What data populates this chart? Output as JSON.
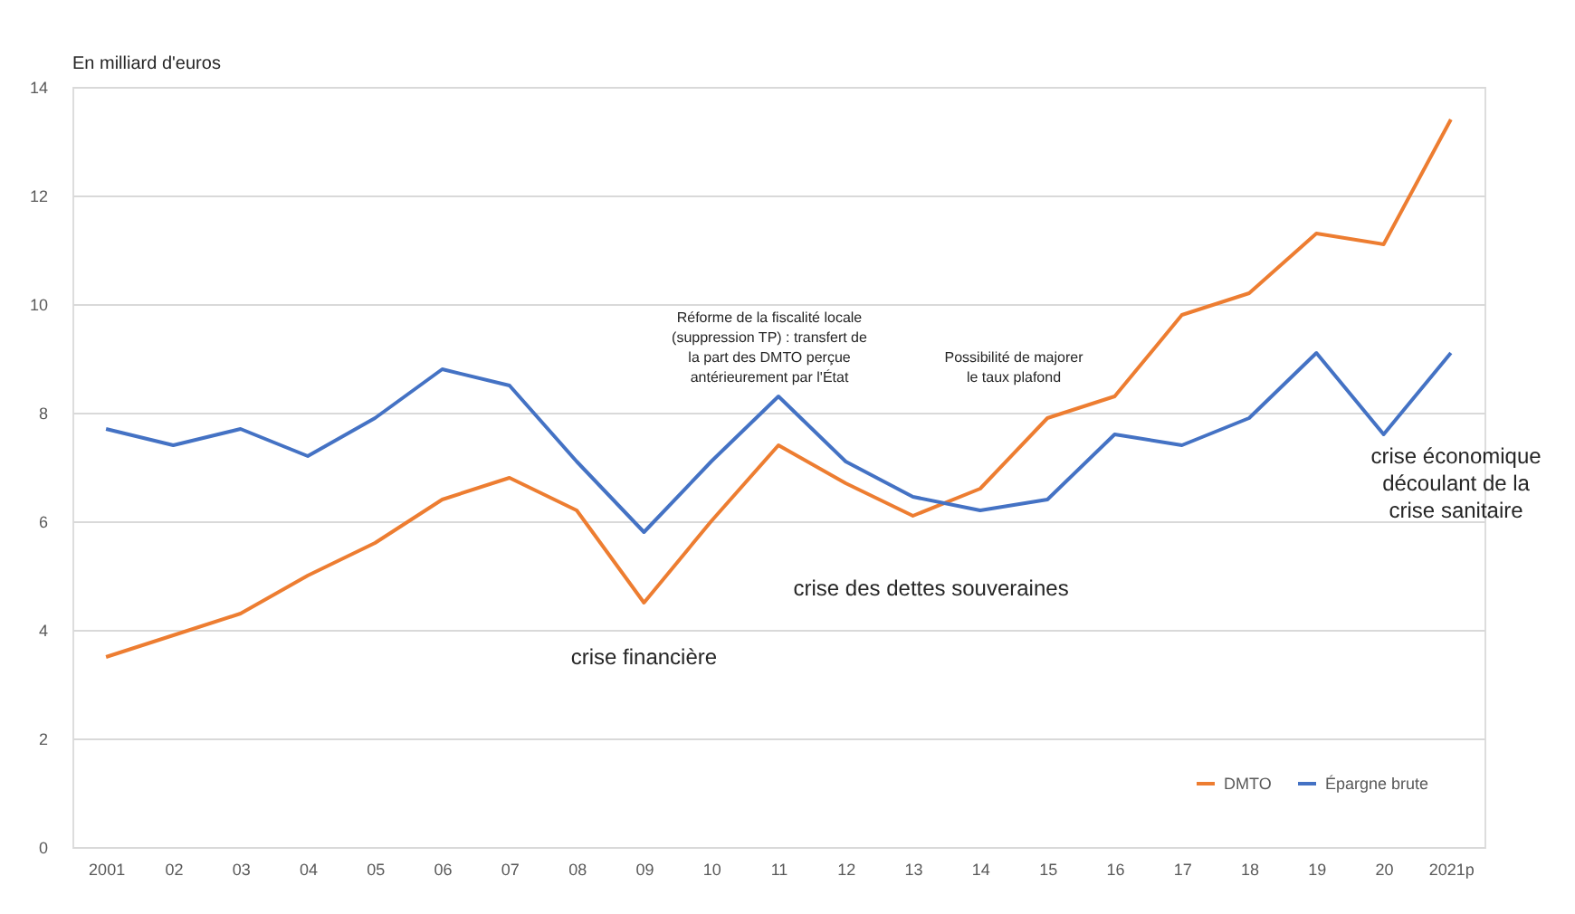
{
  "chart_data": {
    "type": "line",
    "ylabel": "En milliard d'euros",
    "categories": [
      "2001",
      "02",
      "03",
      "04",
      "05",
      "06",
      "07",
      "08",
      "09",
      "10",
      "11",
      "12",
      "13",
      "14",
      "15",
      "16",
      "17",
      "18",
      "19",
      "20",
      "2021p"
    ],
    "series": [
      {
        "name": "DMTO",
        "color": "#ed7d31",
        "values": [
          3.5,
          3.9,
          4.3,
          5.0,
          5.6,
          6.4,
          6.8,
          6.2,
          4.5,
          6.0,
          7.4,
          6.7,
          6.1,
          6.6,
          7.9,
          8.3,
          9.8,
          10.2,
          11.3,
          11.1,
          13.4
        ]
      },
      {
        "name": "Épargne brute",
        "color": "#4472c4",
        "values": [
          7.7,
          7.4,
          7.7,
          7.2,
          7.9,
          8.8,
          8.5,
          7.1,
          5.8,
          7.1,
          8.3,
          7.1,
          6.45,
          6.2,
          6.4,
          7.6,
          7.4,
          7.9,
          9.1,
          7.6,
          9.1
        ]
      }
    ],
    "ylim": [
      0,
      14
    ],
    "yticks": [
      0,
      2,
      4,
      6,
      8,
      10,
      12,
      14
    ],
    "grid": "y",
    "legend": "bottom right",
    "marker": "none",
    "line_style": "solid",
    "annotations": [
      {
        "text": "crise financière",
        "x": "09",
        "y": 4.5
      },
      "Réforme de la fiscalité locale\n(suppression TP) : transfert de\nla part des DMTO perçue\nantérieurement par l'État",
      {
        "text": "crise des dettes souveraines",
        "x": "13",
        "y": 6.1
      },
      "Possibilité de majorer\nle taux plafond",
      {
        "text": "crise économique\ndécoulant de la\ncrise sanitaire",
        "x": "20",
        "y": 7.6
      }
    ]
  }
}
